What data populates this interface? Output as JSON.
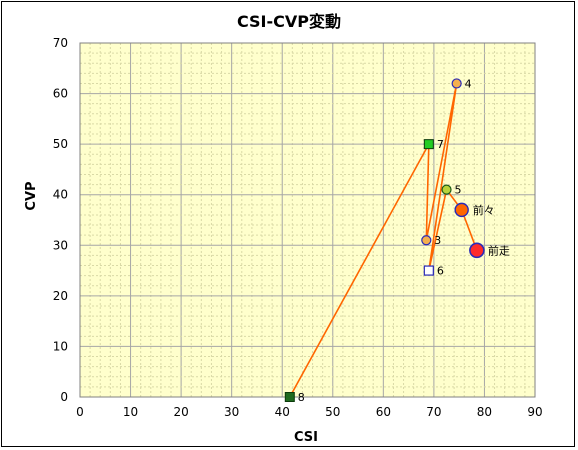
{
  "chart_data": {
    "type": "scatter",
    "title": "CSI-CVP変動",
    "xlabel": "CSI",
    "ylabel": "CVP",
    "xlim": [
      0,
      90
    ],
    "ylim": [
      0,
      70
    ],
    "xticks": [
      0,
      10,
      20,
      30,
      40,
      50,
      60,
      70,
      80,
      90
    ],
    "yticks": [
      0,
      10,
      20,
      30,
      40,
      50,
      60,
      70
    ],
    "grid": true,
    "colors": {
      "plot_bg": "#ffffcc",
      "grid": "#a6a6a6",
      "minor_grid": "#d9d9a6",
      "line": "#ff6600",
      "circle_fill": "#f4b04e",
      "circle_stroke": "#2a2ab8",
      "square_green": "#22cc22",
      "square_dark": "#1f6a1f",
      "square_blank": "#ffffff",
      "red_fill": "#ff2a2a"
    },
    "path_order": [
      "8",
      "7",
      "3",
      "4",
      "6",
      "5",
      "前々",
      "前走"
    ],
    "points": [
      {
        "label": "8",
        "x": 41.5,
        "y": 0,
        "marker": "square-dark"
      },
      {
        "label": "7",
        "x": 69,
        "y": 50,
        "marker": "square-green"
      },
      {
        "label": "3",
        "x": 68.5,
        "y": 31,
        "marker": "circle"
      },
      {
        "label": "4",
        "x": 74.5,
        "y": 62,
        "marker": "circle"
      },
      {
        "label": "6",
        "x": 69,
        "y": 25,
        "marker": "square-blank"
      },
      {
        "label": "5",
        "x": 72.5,
        "y": 41,
        "marker": "circle-green"
      },
      {
        "label": "前々",
        "x": 75.5,
        "y": 37,
        "marker": "circle-large"
      },
      {
        "label": "前走",
        "x": 78.5,
        "y": 29,
        "marker": "circle-red"
      }
    ]
  }
}
